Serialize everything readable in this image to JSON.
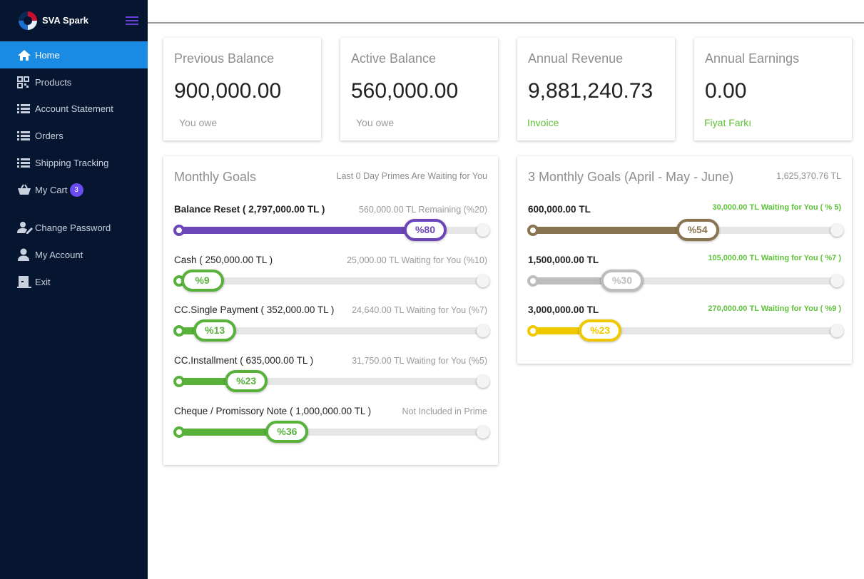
{
  "brand": {
    "name": "SVA Spark"
  },
  "sidebar": {
    "items": [
      {
        "label": "Home",
        "icon": "home-icon"
      },
      {
        "label": "Products",
        "icon": "qr-code-icon"
      },
      {
        "label": "Account Statement",
        "icon": "list-icon"
      },
      {
        "label": "Orders",
        "icon": "list-icon"
      },
      {
        "label": "Shipping Tracking",
        "icon": "list-icon"
      },
      {
        "label": "My Cart",
        "icon": "cart-icon",
        "badge": "3"
      },
      {
        "label": "Change Password",
        "icon": "user-edit-icon"
      },
      {
        "label": "My Account",
        "icon": "user-icon"
      },
      {
        "label": "Exit",
        "icon": "exit-door-icon"
      }
    ]
  },
  "stats": [
    {
      "title": "Previous Balance",
      "value": "900,000.00",
      "sub": "You owe",
      "sub_color": "#9a9a9a"
    },
    {
      "title": "Active Balance",
      "value": "560,000.00",
      "sub": "You owe",
      "sub_color": "#9a9a9a"
    },
    {
      "title": "Annual Revenue",
      "value": "9,881,240.73",
      "sub": "Invoice",
      "sub_color": "#5ec23a"
    },
    {
      "title": "Annual Earnings",
      "value": "0.00",
      "sub": "Fiyat Farkı",
      "sub_color": "#5ec23a"
    }
  ],
  "monthly_goals": {
    "title": "Monthly Goals",
    "note": "Last 0 Day Primes Are Waiting for You",
    "goals": [
      {
        "label": "Balance Reset ( 2,797,000.00 TL )",
        "remaining": "560,000.00 TL Remaining (%20)",
        "percent_label": "%80",
        "percent": 80,
        "color": "#6c45b8"
      },
      {
        "label": "Cash ( 250,000.00 TL )",
        "remaining": "25,000.00 TL Waiting for You (%10)",
        "percent_label": "%9",
        "percent": 9,
        "color": "#58b13a"
      },
      {
        "label": "CC.Single Payment ( 352,000.00 TL )",
        "remaining": "24,640.00 TL Waiting for You (%7)",
        "percent_label": "%13",
        "percent": 13,
        "color": "#58b13a"
      },
      {
        "label": "CC.Installment ( 635,000.00 TL )",
        "remaining": "31,750.00 TL Waiting for You (%5)",
        "percent_label": "%23",
        "percent": 23,
        "color": "#58b13a"
      },
      {
        "label": "Cheque / Promissory Note ( 1,000,000.00 TL )",
        "remaining": "Not Included in Prime",
        "percent_label": "%36",
        "percent": 36,
        "color": "#58b13a"
      }
    ]
  },
  "quarter_goals": {
    "title": "3 Monthly Goals (April - May - June)",
    "note": "1,625,370.76 TL",
    "goals": [
      {
        "label": "600,000.00 TL",
        "remaining": "30,000.00 TL Waiting for You ( % 5)",
        "percent_label": "%54",
        "percent": 54,
        "color": "#8a7350"
      },
      {
        "label": "1,500,000.00 TL",
        "remaining": "105,000.00 TL Waiting for You ( %7 )",
        "percent_label": "%30",
        "percent": 30,
        "color": "#bdbdbd"
      },
      {
        "label": "3,000,000.00 TL",
        "remaining": "270,000.00 TL Waiting for You ( %9 )",
        "percent_label": "%23",
        "percent": 23,
        "color": "#f0c800"
      }
    ]
  }
}
